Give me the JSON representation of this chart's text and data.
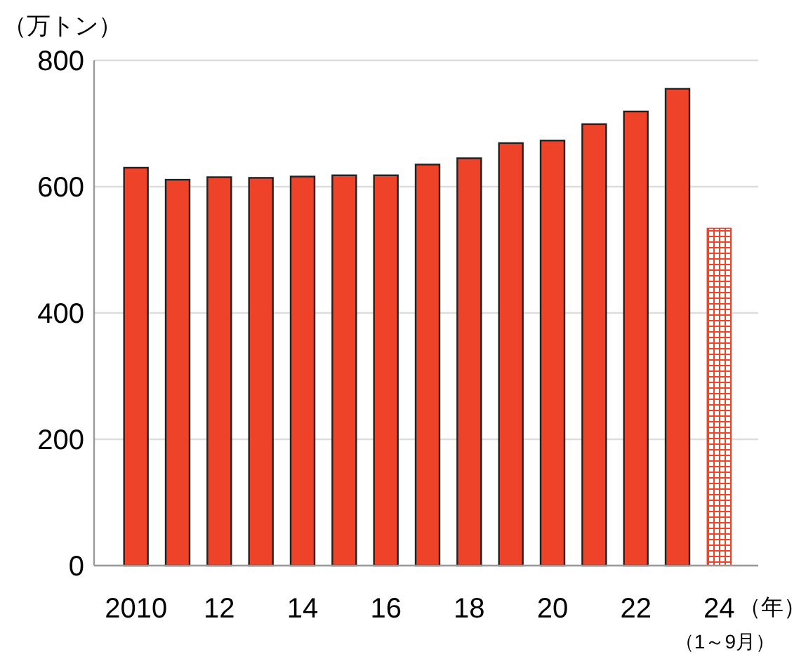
{
  "chart_data": {
    "type": "bar",
    "ylabel": "（万トン）",
    "xlabel": "（年）",
    "categories": [
      "2010",
      null,
      "12",
      null,
      "14",
      null,
      "16",
      null,
      "18",
      null,
      "20",
      null,
      "22",
      null,
      "24"
    ],
    "series": [
      {
        "color": "#ee4229",
        "values": [
          630,
          611,
          615,
          614,
          616,
          618,
          618,
          635,
          645,
          669,
          673,
          699,
          719,
          755,
          null
        ]
      },
      {
        "color": "#ee4229",
        "values": [
          null,
          null,
          null,
          null,
          null,
          null,
          null,
          null,
          null,
          null,
          null,
          null,
          null,
          null,
          534
        ]
      }
    ],
    "ylim": [
      0,
      800
    ],
    "yticks": [
      0,
      200,
      400,
      600,
      800
    ],
    "grid": "y",
    "annotations": [
      "（1～9月）"
    ]
  }
}
